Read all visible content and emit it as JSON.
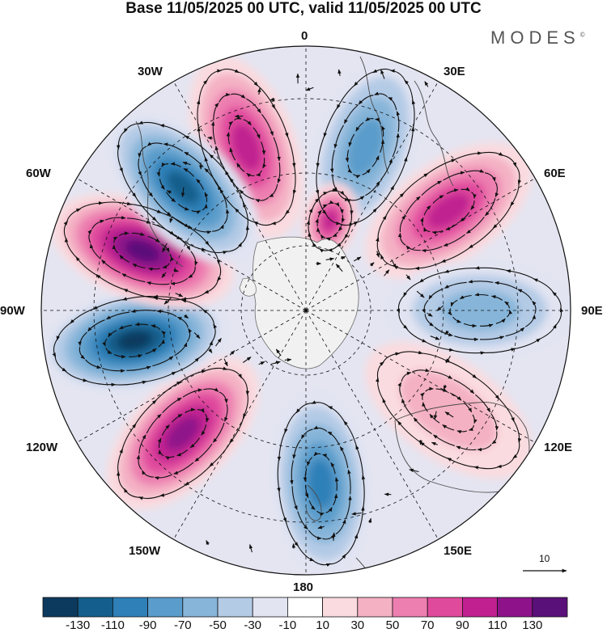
{
  "title": "Base 11/05/2025 00 UTC, valid 11/05/2025 00 UTC",
  "brand": "MODES",
  "brand_mark": "©",
  "longitude_labels": [
    {
      "id": "0",
      "text": "0"
    },
    {
      "id": "30E",
      "text": "30E"
    },
    {
      "id": "60E",
      "text": "60E"
    },
    {
      "id": "90E",
      "text": "90E"
    },
    {
      "id": "120E",
      "text": "120E"
    },
    {
      "id": "150E",
      "text": "150E"
    },
    {
      "id": "180",
      "text": "180"
    },
    {
      "id": "150W",
      "text": "150W"
    },
    {
      "id": "120W",
      "text": "120W"
    },
    {
      "id": "90W",
      "text": "90W"
    },
    {
      "id": "60W",
      "text": "60W"
    },
    {
      "id": "30W",
      "text": "30W"
    }
  ],
  "reference_vector": "10",
  "colorbar": {
    "colors": [
      "#0c3a5e",
      "#135e8c",
      "#2f80b8",
      "#5a9ccb",
      "#87b5d9",
      "#b4cbe6",
      "#e2e4f2",
      "#ffffff",
      "#fadbdf",
      "#f4b1c4",
      "#ed7eb0",
      "#e04a9d",
      "#c02090",
      "#8e138a",
      "#5a1079"
    ],
    "tick_labels": [
      "-130",
      "-110",
      "-90",
      "-70",
      "-50",
      "-30",
      "-10",
      "10",
      "30",
      "50",
      "70",
      "90",
      "110",
      "130"
    ]
  },
  "map_data": {
    "projection": "south polar stereographic",
    "anomaly_centers": [
      {
        "lon": -20,
        "sign": "+",
        "value": 90
      },
      {
        "lon": 20,
        "sign": "-",
        "value": -70
      },
      {
        "lon": 55,
        "sign": "+",
        "value": 100
      },
      {
        "lon": 15,
        "sign": "+",
        "value": 90
      },
      {
        "lon": 90,
        "sign": "-",
        "value": -50
      },
      {
        "lon": 125,
        "sign": "+",
        "value": 30
      },
      {
        "lon": 175,
        "sign": "-",
        "value": -90
      },
      {
        "lon": -135,
        "sign": "+",
        "value": 110
      },
      {
        "lon": -100,
        "sign": "-",
        "value": -130
      },
      {
        "lon": -70,
        "sign": "+",
        "value": 130
      },
      {
        "lon": -45,
        "sign": "-",
        "value": -110
      }
    ]
  }
}
